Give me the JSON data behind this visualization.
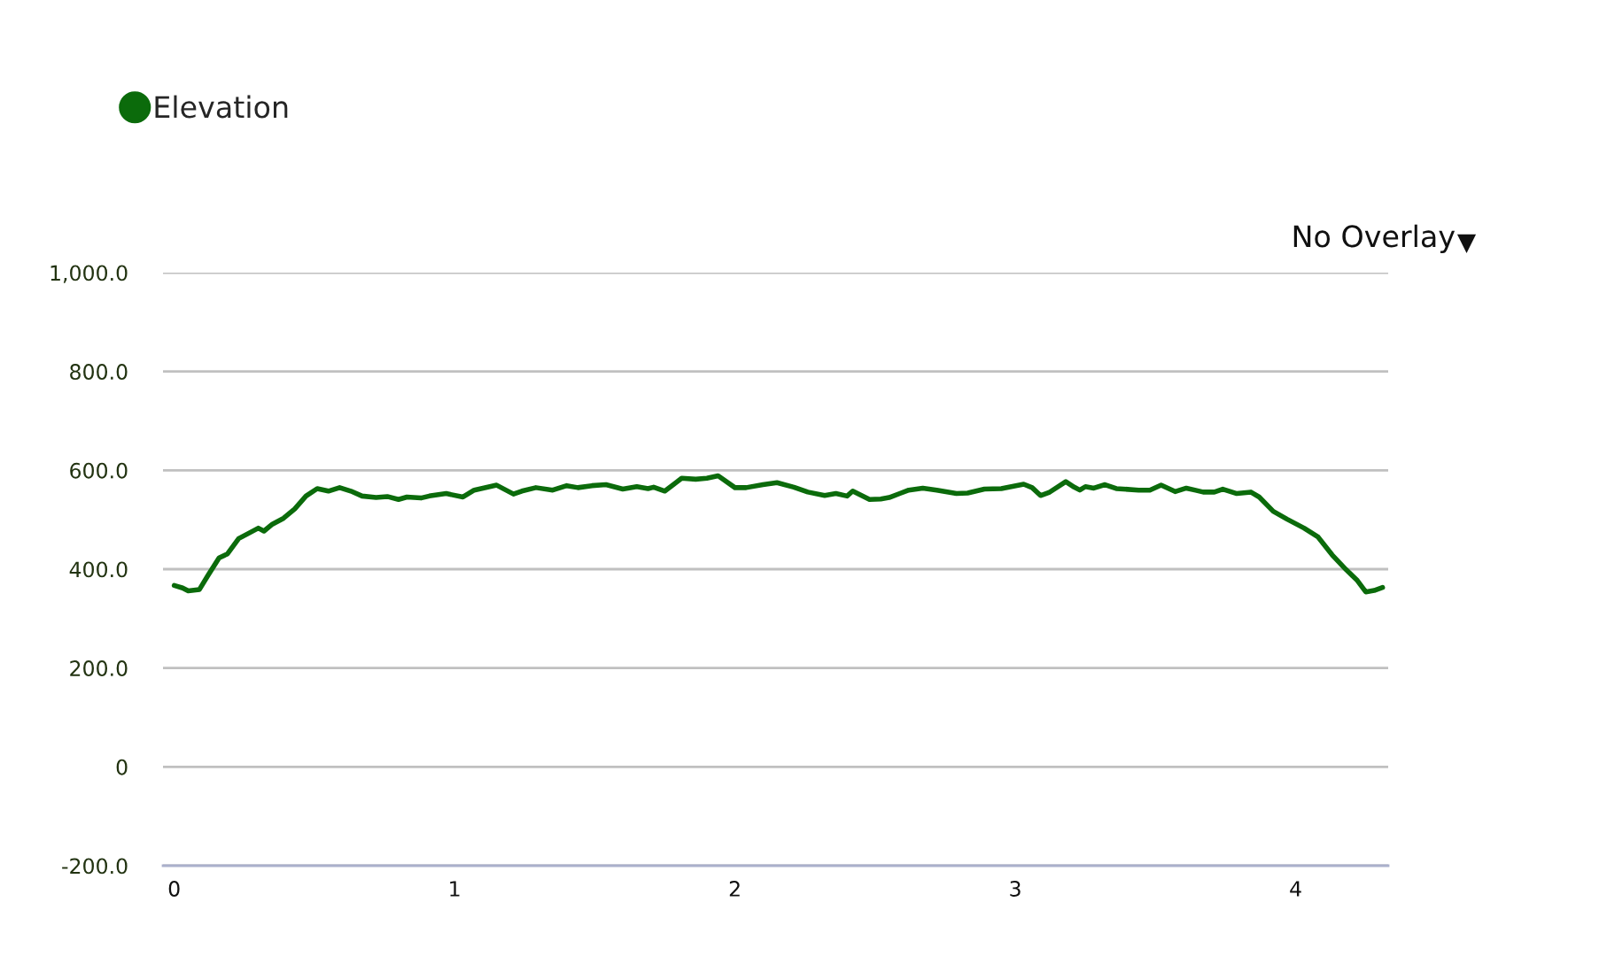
{
  "chart_data": {
    "type": "line",
    "xlim": [
      -0.04,
      4.33
    ],
    "xticks": [
      0,
      1,
      2,
      3,
      4
    ],
    "ylim": [
      -200,
      1000
    ],
    "yticks": [
      {
        "value": 1000,
        "label": "1,000.0"
      },
      {
        "value": 800,
        "label": "800.0"
      },
      {
        "value": 600,
        "label": "600.0"
      },
      {
        "value": 400,
        "label": "400.0"
      },
      {
        "value": 200,
        "label": "200.0"
      },
      0,
      {
        "value": -200,
        "label": "-200.0"
      }
    ],
    "grid": "y",
    "legend": "top left",
    "marker": "none",
    "line_style": "solid",
    "annotations": [
      "No Overlay"
    ],
    "series": [
      {
        "name": "Elevation",
        "color": "#0b6b0b",
        "x": [
          0.0,
          0.03,
          0.05,
          0.09,
          0.12,
          0.16,
          0.19,
          0.23,
          0.26,
          0.3,
          0.32,
          0.35,
          0.39,
          0.43,
          0.47,
          0.51,
          0.55,
          0.59,
          0.63,
          0.67,
          0.72,
          0.76,
          0.8,
          0.83,
          0.88,
          0.91,
          0.97,
          1.03,
          1.07,
          1.15,
          1.21,
          1.24,
          1.29,
          1.35,
          1.4,
          1.44,
          1.49,
          1.54,
          1.6,
          1.65,
          1.69,
          1.71,
          1.75,
          1.81,
          1.86,
          1.9,
          1.94,
          2.0,
          2.04,
          2.1,
          2.15,
          2.21,
          2.26,
          2.32,
          2.36,
          2.4,
          2.42,
          2.48,
          2.52,
          2.55,
          2.62,
          2.67,
          2.72,
          2.79,
          2.83,
          2.89,
          2.95,
          3.03,
          3.06,
          3.09,
          3.12,
          3.18,
          3.21,
          3.23,
          3.25,
          3.28,
          3.32,
          3.36,
          3.44,
          3.48,
          3.52,
          3.57,
          3.61,
          3.64,
          3.67,
          3.71,
          3.74,
          3.79,
          3.84,
          3.87,
          3.92,
          3.97,
          4.03,
          4.08,
          4.13,
          4.18,
          4.22,
          4.25,
          4.28,
          4.31
        ],
        "values": [
          367,
          362,
          356,
          359,
          387,
          423,
          431,
          462,
          471,
          483,
          477,
          491,
          503,
          522,
          548,
          563,
          558,
          565,
          558,
          548,
          545,
          547,
          541,
          546,
          544,
          548,
          553,
          546,
          560,
          570,
          552,
          558,
          565,
          560,
          569,
          565,
          569,
          571,
          562,
          567,
          563,
          566,
          558,
          584,
          582,
          584,
          589,
          565,
          565,
          571,
          575,
          566,
          556,
          549,
          553,
          548,
          558,
          541,
          542,
          545,
          560,
          564,
          560,
          553,
          554,
          562,
          563,
          572,
          565,
          549,
          555,
          577,
          566,
          560,
          567,
          564,
          571,
          563,
          560,
          560,
          570,
          557,
          564,
          560,
          556,
          556,
          562,
          553,
          556,
          546,
          517,
          501,
          483,
          465,
          429,
          399,
          377,
          354,
          357,
          363
        ]
      }
    ]
  }
}
